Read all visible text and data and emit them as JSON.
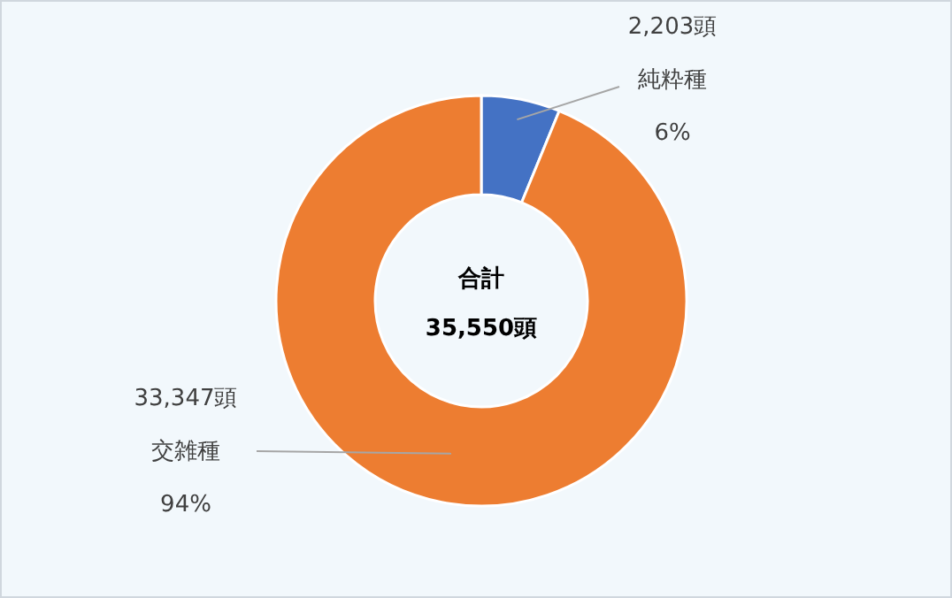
{
  "chart_data": {
    "type": "donut",
    "categories": [
      "純粋種",
      "交雑種"
    ],
    "values": [
      2203,
      33347
    ],
    "colors": [
      "#4472c4",
      "#ed7d31"
    ],
    "value_labels": [
      "2,203頭",
      "33,347頭"
    ],
    "annotations": [
      {
        "text": "6%",
        "x": "純粋種"
      },
      {
        "text": "94%",
        "x": "交雑種"
      },
      "合計",
      "35,550頭"
    ]
  }
}
